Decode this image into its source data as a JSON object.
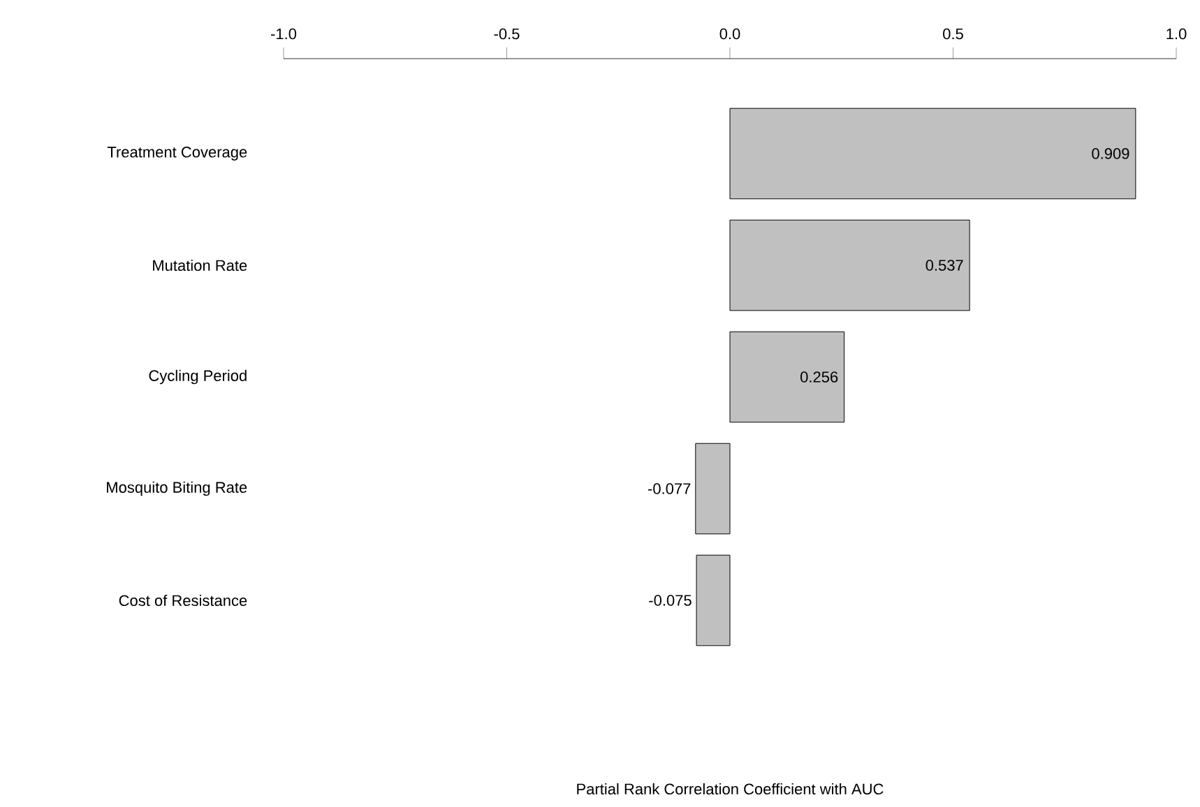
{
  "chart_data": {
    "type": "bar",
    "orientation": "horizontal",
    "annotations": [
      "Partial Rank Correlation Coefficient with AUC"
    ],
    "categories": [
      "Treatment Coverage",
      "Mutation Rate",
      "Cycling Period",
      "Mosquito Biting Rate",
      "Cost of Resistance"
    ],
    "values": [
      0.909,
      0.537,
      0.256,
      -0.077,
      -0.075
    ],
    "color": "#c0c0c0",
    "data_labels": true,
    "grid": false,
    "xlim": [
      -1,
      1
    ],
    "xticks": [
      {
        "value": -1,
        "label": "-1.0"
      },
      {
        "value": -0.5,
        "label": "-0.5"
      },
      {
        "value": 0,
        "label": "0.0"
      },
      {
        "value": 0.5,
        "label": "0.5"
      },
      {
        "value": 1,
        "label": "1.0"
      }
    ]
  }
}
